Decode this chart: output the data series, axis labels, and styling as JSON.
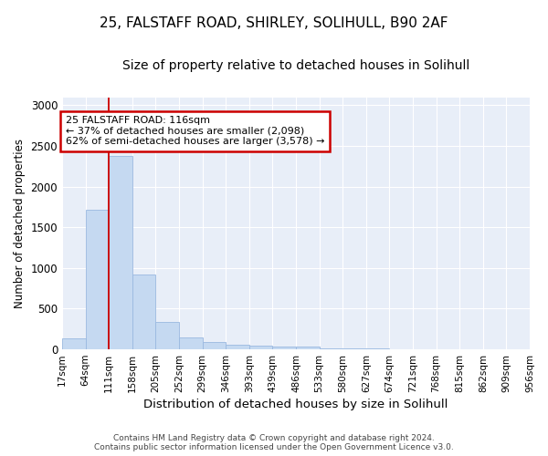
{
  "title_line1": "25, FALSTAFF ROAD, SHIRLEY, SOLIHULL, B90 2AF",
  "title_line2": "Size of property relative to detached houses in Solihull",
  "xlabel": "Distribution of detached houses by size in Solihull",
  "ylabel": "Number of detached properties",
  "bar_values": [
    130,
    1720,
    2380,
    920,
    340,
    150,
    90,
    60,
    50,
    40,
    30,
    15,
    10,
    8,
    5,
    4,
    3,
    2,
    2,
    1
  ],
  "bin_labels": [
    "17sqm",
    "64sqm",
    "111sqm",
    "158sqm",
    "205sqm",
    "252sqm",
    "299sqm",
    "346sqm",
    "393sqm",
    "439sqm",
    "486sqm",
    "533sqm",
    "580sqm",
    "627sqm",
    "674sqm",
    "721sqm",
    "768sqm",
    "815sqm",
    "862sqm",
    "909sqm",
    "956sqm"
  ],
  "bar_color": "#c5d9f1",
  "bar_edge_color": "#9ab8e0",
  "vline_x": 2,
  "annotation_text": "25 FALSTAFF ROAD: 116sqm\n← 37% of detached houses are smaller (2,098)\n62% of semi-detached houses are larger (3,578) →",
  "annotation_box_color": "#ffffff",
  "annotation_box_edge_color": "#cc0000",
  "vline_color": "#cc0000",
  "footer_line1": "Contains HM Land Registry data © Crown copyright and database right 2024.",
  "footer_line2": "Contains public sector information licensed under the Open Government Licence v3.0.",
  "ylim": [
    0,
    3100
  ],
  "yticks": [
    0,
    500,
    1000,
    1500,
    2000,
    2500,
    3000
  ],
  "background_color": "#ffffff",
  "plot_background": "#e8eef8",
  "grid_color": "#ffffff",
  "title_fontsize": 11,
  "subtitle_fontsize": 10
}
